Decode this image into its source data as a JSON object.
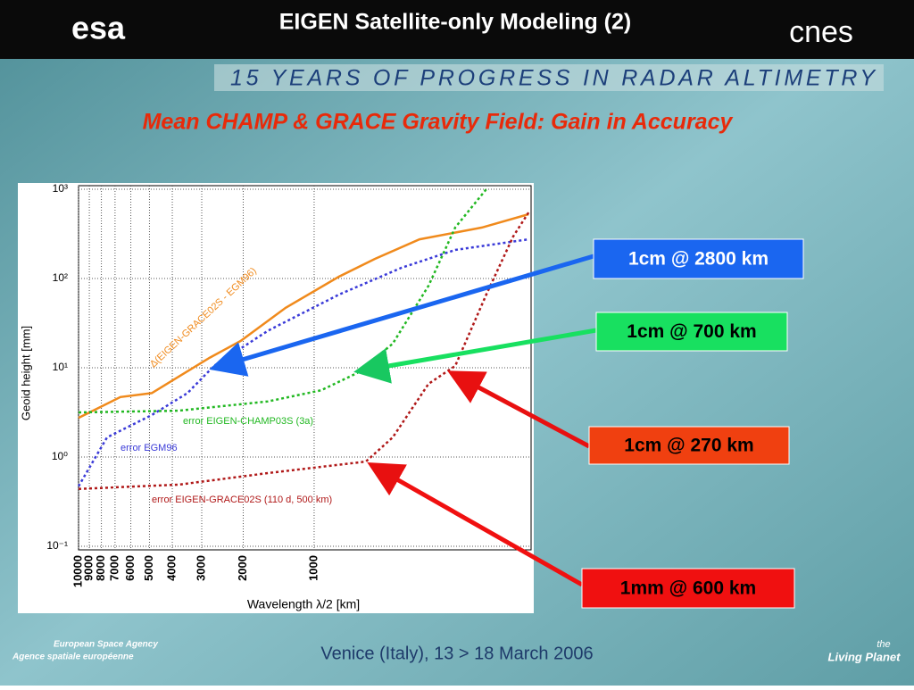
{
  "header": {
    "title": "EIGEN Satellite-only Modeling (2)",
    "logo_left": "esa",
    "logo_right": "cnes"
  },
  "banner": "15 YEARS OF PROGRESS IN RADAR ALTIMETRY",
  "subtitle": "Mean CHAMP & GRACE Gravity Field: Gain in Accuracy",
  "chart_data": {
    "type": "line",
    "x_label": "Wavelength λ/2 [km]",
    "y_label": "Geoid height [mm]",
    "xscale": "log",
    "yscale": "log",
    "grid": true,
    "xlim": [
      10000,
      120
    ],
    "ylim": [
      0.1,
      1000
    ],
    "xticks": [
      10000,
      9000,
      8000,
      7000,
      6000,
      5000,
      4000,
      3000,
      2000,
      1000
    ],
    "yticks": [
      {
        "value": 0.1,
        "label": "10⁻¹"
      },
      {
        "value": 1,
        "label": "10⁰"
      },
      {
        "value": 10,
        "label": "10¹"
      },
      {
        "value": 100,
        "label": "10²"
      },
      {
        "value": 1000,
        "label": "10³"
      }
    ],
    "series": [
      {
        "name": "Δ(EIGEN-GRACE02S - EGM96)",
        "color": "#f08a1c",
        "x": [
          10000,
          6640,
          4890,
          3770,
          2770,
          2050,
          1320,
          784,
          552,
          357,
          194,
          123
        ],
        "values": [
          2.75,
          4.7,
          5.2,
          7.9,
          13,
          20,
          47,
          105,
          166,
          275,
          372,
          525
        ]
      },
      {
        "name": "error EGM96",
        "color": "#3a3ad8",
        "x": [
          10000,
          7570,
          4890,
          3450,
          2660,
          1570,
          784,
          425,
          252,
          123
        ],
        "values": [
          0.47,
          1.66,
          2.95,
          5.2,
          10.5,
          26,
          66,
          132,
          209,
          275
        ]
      },
      {
        "name": "error EIGEN-CHAMP03S (3a)",
        "color": "#22b822",
        "x": [
          10000,
          3770,
          1570,
          933,
          658,
          464,
          327,
          252,
          186
        ],
        "values": [
          3.16,
          3.3,
          4.2,
          5.6,
          8.7,
          18.6,
          83,
          372,
          1000
        ]
      },
      {
        "name": "error EIGEN-GRACE02S (110 d, 500 km)",
        "color": "#b01818",
        "x": [
          10000,
          3770,
          1570,
          603,
          464,
          327,
          252,
          186,
          143,
          123
        ],
        "values": [
          0.44,
          0.49,
          0.66,
          0.89,
          1.66,
          6.6,
          10.5,
          66,
          295,
          550
        ]
      }
    ]
  },
  "callouts": [
    "1cm @ 2800 km",
    "1cm @ 700 km",
    "1cm @ 270 km",
    "1mm @ 600 km"
  ],
  "footer": {
    "venue": "Venice (Italy), 13 > 18 March 2006",
    "agency_en": "European Space Agency",
    "agency_fr": "Agence spatiale européenne",
    "living_planet_1": "the",
    "living_planet_2": "Living Planet"
  }
}
